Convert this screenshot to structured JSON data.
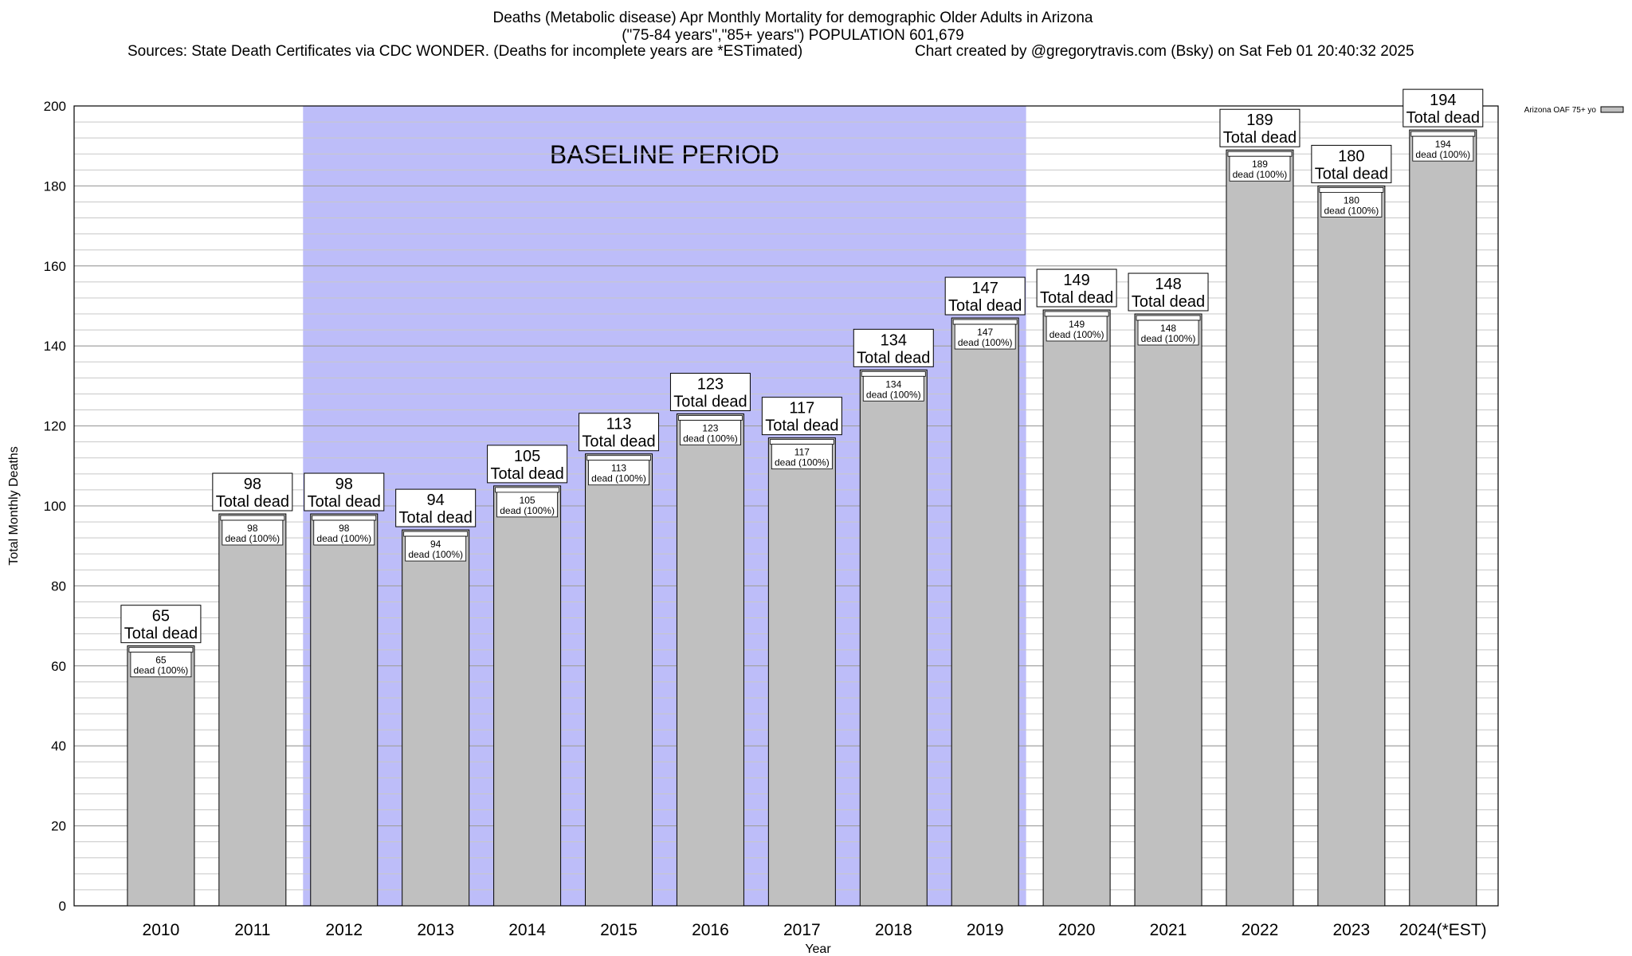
{
  "header": {
    "title_line1": "Deaths (Metabolic disease) Apr Monthly Mortality for demographic Older Adults in Arizona",
    "title_line2": "(\"75-84 years\",\"85+ years\") POPULATION 601,679",
    "sources": "Sources: State Death Certificates via CDC WONDER. (Deaths for incomplete years are *ESTimated)",
    "credit": "Chart created by @gregorytravis.com (Bsky) on Sat Feb 01 20:40:32 2025"
  },
  "chart_data": {
    "type": "bar",
    "xlabel": "Year",
    "ylabel": "Total Monthly Deaths",
    "ylim": [
      0,
      200
    ],
    "y_ticks": [
      0,
      20,
      40,
      60,
      80,
      100,
      120,
      140,
      160,
      180,
      200
    ],
    "grid": true,
    "legend_position": "top-right",
    "baseline_label": "BASELINE PERIOD",
    "baseline_range": [
      "2012",
      "2019"
    ],
    "categories": [
      "2010",
      "2011",
      "2012",
      "2013",
      "2014",
      "2015",
      "2016",
      "2017",
      "2018",
      "2019",
      "2020",
      "2021",
      "2022",
      "2023",
      "2024(*EST)"
    ],
    "series": [
      {
        "name": "Arizona OAF 75+ yo",
        "color": "#c0c0c0",
        "values": [
          65,
          98,
          98,
          94,
          105,
          113,
          123,
          117,
          134,
          147,
          149,
          148,
          189,
          180,
          194
        ]
      }
    ],
    "total_label_suffix": "Total dead",
    "inner_label_suffix": "dead (100%)",
    "baseline_color": "#bdbdf9"
  }
}
